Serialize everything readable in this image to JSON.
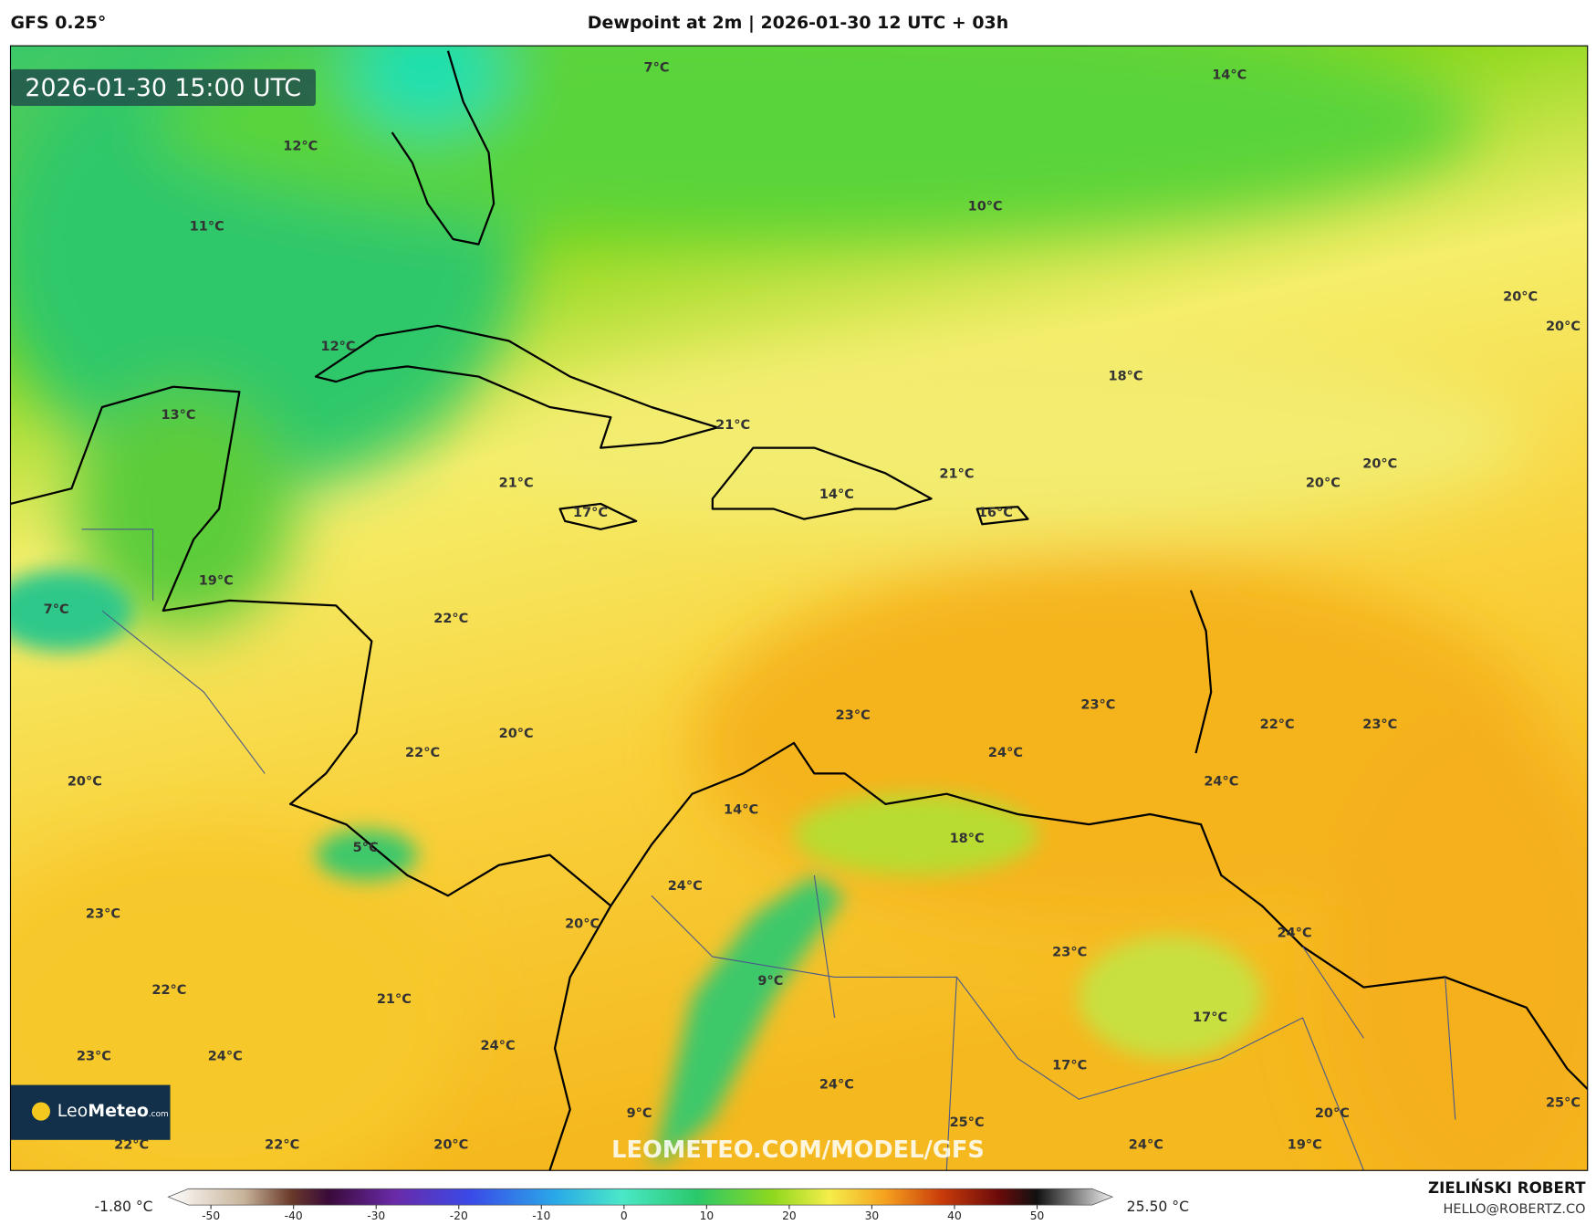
{
  "header": {
    "model": "GFS 0.25°",
    "title": "Dewpoint at 2m | 2026-01-30 12 UTC + 03h",
    "valid_time": "2026-01-30 15:00 UTC"
  },
  "map": {
    "labels": [
      "7°C",
      "14°C",
      "12°C",
      "11°C",
      "10°C",
      "20°C",
      "20°C",
      "12°C",
      "18°C",
      "13°C",
      "21°C",
      "21°C",
      "21°C",
      "14°C",
      "20°C",
      "20°C",
      "17°C",
      "16°C",
      "19°C",
      "7°C",
      "22°C",
      "23°C",
      "23°C",
      "22°C",
      "23°C",
      "20°C",
      "22°C",
      "24°C",
      "20°C",
      "24°C",
      "14°C",
      "18°C",
      "5°C",
      "24°C",
      "23°C",
      "20°C",
      "24°C",
      "23°C",
      "9°C",
      "22°C",
      "21°C",
      "17°C",
      "24°C",
      "23°C",
      "24°C",
      "17°C",
      "24°C",
      "25°C",
      "20°C",
      "9°C",
      "25°C",
      "22°C",
      "22°C",
      "20°C",
      "24°C",
      "19°C"
    ],
    "watermark": "LEOMETEO.COM/MODEL/GFS",
    "logo": {
      "part1": "Leo",
      "part2": "Meteo",
      "part3": ".com"
    }
  },
  "colorbar": {
    "min_label": "-1.80 °C",
    "max_label": "25.50 °C",
    "ticks": [
      -50,
      -40,
      -30,
      -20,
      -10,
      0,
      10,
      20,
      30,
      40,
      50
    ]
  },
  "footer": {
    "author": "ZIELIŃSKI ROBERT",
    "email": "HELLO@ROBERTZ.CO"
  }
}
